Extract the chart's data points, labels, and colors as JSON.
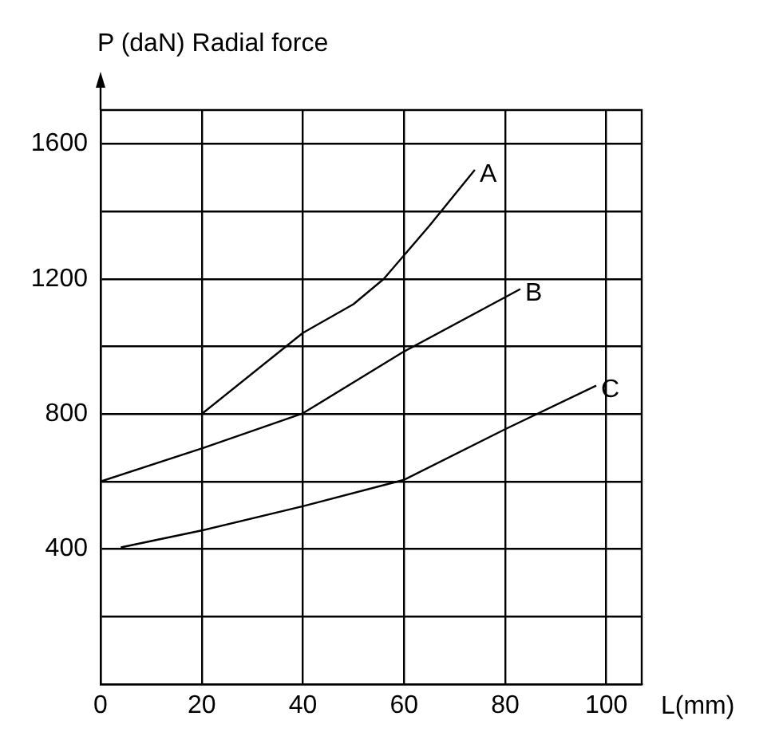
{
  "chart_data": {
    "type": "line",
    "ylabel": "P (daN) Radial force",
    "xlabel": "L(mm)",
    "xlim": [
      0,
      107
    ],
    "ylim": [
      0,
      1700
    ],
    "xticks": [
      0,
      20,
      40,
      60,
      80,
      100
    ],
    "yticks": [
      {
        "value": 0,
        "label": null
      },
      {
        "value": 200,
        "label": null
      },
      400,
      {
        "value": 600,
        "label": null
      },
      800,
      {
        "value": 1000,
        "label": null
      },
      1200,
      {
        "value": 1400,
        "label": null
      },
      1600
    ],
    "grid": true,
    "legend": false,
    "marker": "none",
    "line_style": "solid",
    "series": [
      {
        "name": "A",
        "color": "#000000",
        "x": [
          20,
          40,
          50,
          56,
          65,
          74
        ],
        "values": [
          800,
          1040,
          1125,
          1200,
          1357,
          1523
        ]
      },
      {
        "name": "B",
        "color": "#000000",
        "x": [
          0,
          20,
          40,
          60,
          83
        ],
        "values": [
          600,
          698,
          802,
          985,
          1170
        ]
      },
      {
        "name": "C",
        "color": "#000000",
        "x": [
          4,
          20,
          40,
          60,
          80,
          98
        ],
        "values": [
          405,
          455,
          527,
          605,
          755,
          884
        ]
      }
    ]
  }
}
